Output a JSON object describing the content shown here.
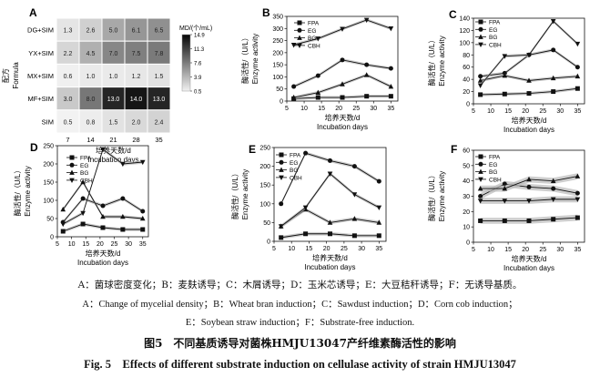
{
  "chart_data": [
    {
      "panel": "A",
      "type": "heatmap",
      "ylabel_cn": "配方",
      "ylabel_en": "Formula",
      "xlabel_cn": "培养天数/d",
      "xlabel_en": "Incubation days",
      "rows": [
        "DG+SIM",
        "YX+SIM",
        "MX+SIM",
        "MF+SIM",
        "SIM"
      ],
      "cols": [
        "7",
        "14",
        "21",
        "28",
        "35"
      ],
      "values": [
        [
          1.3,
          2.6,
          5.0,
          6.1,
          6.5
        ],
        [
          2.2,
          4.5,
          7.0,
          7.5,
          7.8
        ],
        [
          0.6,
          1.0,
          1.0,
          1.2,
          1.5
        ],
        [
          3.0,
          8.0,
          13.0,
          14.0,
          13.0
        ],
        [
          0.5,
          0.8,
          1.5,
          2.0,
          2.4
        ]
      ],
      "colorbar_title": "MD/(个/mL)",
      "colorbar_ticks": [
        "14.9",
        "11.3",
        "7.6",
        "3.9",
        "0.5"
      ],
      "vmin": 0.5,
      "vmax": 14.9
    },
    {
      "panel": "B",
      "type": "line",
      "ylabel_cn": "酶活性/（U/L）",
      "ylabel_en": "Enzyme activity",
      "xlabel_cn": "培养天数/d",
      "xlabel_en": "Incubation days",
      "x": [
        7,
        14,
        21,
        28,
        35
      ],
      "xticks": [
        "5",
        "10",
        "15",
        "20",
        "25",
        "30",
        "35"
      ],
      "xlim": [
        5,
        37
      ],
      "ylim": [
        0,
        350
      ],
      "yticks": [
        "0",
        "50",
        "100",
        "150",
        "200",
        "250",
        "300",
        "350"
      ],
      "series": [
        {
          "name": "FPA",
          "marker": "square",
          "values": [
            10,
            15,
            15,
            20,
            20
          ]
        },
        {
          "name": "EG",
          "marker": "circle",
          "values": [
            60,
            105,
            170,
            150,
            135
          ]
        },
        {
          "name": "BG",
          "marker": "triangle-up",
          "values": [
            15,
            35,
            70,
            108,
            60
          ]
        },
        {
          "name": "CBH",
          "marker": "triangle-down",
          "values": [
            232,
            258,
            298,
            335,
            300
          ]
        }
      ]
    },
    {
      "panel": "C",
      "type": "line",
      "ylabel_cn": "酶活性/（U/L）",
      "ylabel_en": "Enzyme activity",
      "xlabel_cn": "培养天数/d",
      "xlabel_en": "Incubation days",
      "x": [
        7,
        14,
        21,
        28,
        35
      ],
      "xticks": [
        "5",
        "10",
        "15",
        "20",
        "25",
        "30",
        "35"
      ],
      "xlim": [
        5,
        37
      ],
      "ylim": [
        0,
        140
      ],
      "yticks": [
        "0",
        "20",
        "40",
        "60",
        "80",
        "100",
        "120",
        "140"
      ],
      "series": [
        {
          "name": "FPA",
          "marker": "square",
          "values": [
            15,
            16,
            17,
            20,
            25
          ]
        },
        {
          "name": "EG",
          "marker": "circle",
          "values": [
            45,
            50,
            80,
            88,
            60
          ]
        },
        {
          "name": "BG",
          "marker": "triangle-up",
          "values": [
            38,
            46,
            38,
            42,
            45
          ]
        },
        {
          "name": "CBH",
          "marker": "triangle-down",
          "values": [
            30,
            78,
            80,
            135,
            98
          ]
        }
      ]
    },
    {
      "panel": "D",
      "type": "line",
      "ylabel_cn": "酶活性/（U/L）",
      "ylabel_en": "Enzyme activity",
      "xlabel_cn": "培养天数/d",
      "xlabel_en": "Incubation days",
      "x": [
        7,
        14,
        21,
        28,
        35
      ],
      "xticks": [
        "5",
        "10",
        "15",
        "20",
        "25",
        "30",
        "35"
      ],
      "xlim": [
        5,
        37
      ],
      "ylim": [
        0,
        250
      ],
      "yticks": [
        "0",
        "50",
        "100",
        "150",
        "200",
        "250"
      ],
      "series": [
        {
          "name": "FPA",
          "marker": "square",
          "values": [
            15,
            35,
            25,
            20,
            20
          ]
        },
        {
          "name": "EG",
          "marker": "circle",
          "values": [
            40,
            105,
            85,
            105,
            70
          ]
        },
        {
          "name": "BG",
          "marker": "triangle-up",
          "values": [
            75,
            150,
            55,
            55,
            50
          ]
        },
        {
          "name": "CBH",
          "marker": "triangle-down",
          "values": [
            35,
            65,
            240,
            200,
            205
          ]
        }
      ]
    },
    {
      "panel": "E",
      "type": "line",
      "ylabel_cn": "酶活性/（U/L）",
      "ylabel_en": "Enzyme activity",
      "xlabel_cn": "培养天数/d",
      "xlabel_en": "Incubation days",
      "x": [
        7,
        14,
        21,
        28,
        35
      ],
      "xticks": [
        "5",
        "10",
        "15",
        "20",
        "25",
        "30",
        "35"
      ],
      "xlim": [
        5,
        37
      ],
      "ylim": [
        0,
        250
      ],
      "yticks": [
        "0",
        "50",
        "100",
        "150",
        "200",
        "250"
      ],
      "series": [
        {
          "name": "FPA",
          "marker": "square",
          "values": [
            10,
            20,
            20,
            15,
            15
          ]
        },
        {
          "name": "EG",
          "marker": "circle",
          "values": [
            100,
            235,
            215,
            200,
            160
          ]
        },
        {
          "name": "BG",
          "marker": "triangle-up",
          "values": [
            40,
            85,
            50,
            60,
            50
          ]
        },
        {
          "name": "CBH",
          "marker": "triangle-down",
          "values": [
            40,
            90,
            180,
            125,
            90
          ]
        }
      ]
    },
    {
      "panel": "F",
      "type": "line",
      "ylabel_cn": "酶活性/（U/L）",
      "ylabel_en": "Enzyme activity",
      "xlabel_cn": "培养天数/d",
      "xlabel_en": "Incubation days",
      "x": [
        7,
        14,
        21,
        28,
        35
      ],
      "xticks": [
        "5",
        "10",
        "15",
        "20",
        "25",
        "30",
        "35"
      ],
      "xlim": [
        5,
        37
      ],
      "ylim": [
        0,
        60
      ],
      "yticks": [
        "0",
        "10",
        "20",
        "30",
        "40",
        "50",
        "60"
      ],
      "series": [
        {
          "name": "FPA",
          "marker": "square",
          "values": [
            14,
            14,
            14,
            15,
            16
          ]
        },
        {
          "name": "EG",
          "marker": "circle",
          "values": [
            30,
            38,
            36,
            35,
            32
          ]
        },
        {
          "name": "BG",
          "marker": "triangle-up",
          "values": [
            35,
            35,
            41,
            40,
            43
          ]
        },
        {
          "name": "CBH",
          "marker": "triangle-down",
          "values": [
            27,
            27,
            27,
            28,
            28
          ]
        }
      ]
    }
  ],
  "caption": {
    "panels_cn": "A：菌球密度变化；B：麦麸诱导；C：木屑诱导；D：玉米芯诱导；E：大豆秸秆诱导；F：无诱导基质。",
    "panels_en_1": "A：Change of mycelial density；B：Wheat bran induction；C：Sawdust induction；D：Corn cob induction；",
    "panels_en_2": "E：Soybean straw induction；F：Substrate-free induction.",
    "title_cn": "图5　不同基质诱导对菌株HMJU13047产纤维素酶活性的影响",
    "title_en": "Fig. 5　Effects of different substrate induction on cellulase activity of strain HMJU13047"
  }
}
